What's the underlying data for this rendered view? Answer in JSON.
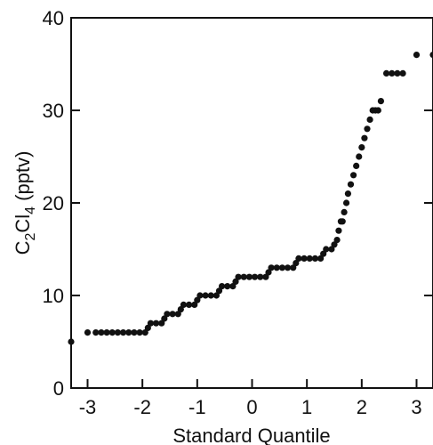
{
  "chart_data": {
    "type": "scatter",
    "xlabel": "Standard Quantile",
    "ylabel_parts": [
      "C",
      "2",
      "Cl",
      "4",
      " (pptv)"
    ],
    "xlim": [
      -3.3,
      3.3
    ],
    "ylim": [
      0,
      40
    ],
    "x_ticks": [
      -3,
      -2,
      -1,
      0,
      1,
      2,
      3
    ],
    "x_tick_labels": [
      "-3",
      "-2",
      "-1",
      "0",
      "1",
      "2",
      "3"
    ],
    "y_ticks": [
      0,
      10,
      20,
      30,
      40
    ],
    "y_tick_labels": [
      "0",
      "10",
      "20",
      "30",
      "40"
    ],
    "grid": false,
    "marker_color": "#111111",
    "series": [
      {
        "points": [
          [
            -3.3,
            5
          ],
          [
            -3.0,
            6
          ],
          [
            -2.85,
            6
          ],
          [
            -2.75,
            6
          ],
          [
            -2.65,
            6
          ],
          [
            -2.55,
            6
          ],
          [
            -2.45,
            6
          ],
          [
            -2.35,
            6
          ],
          [
            -2.25,
            6
          ],
          [
            -2.15,
            6
          ],
          [
            -2.05,
            6
          ],
          [
            -1.95,
            6
          ],
          [
            -1.9,
            6.5
          ],
          [
            -1.85,
            7
          ],
          [
            -1.75,
            7
          ],
          [
            -1.65,
            7
          ],
          [
            -1.6,
            7.5
          ],
          [
            -1.55,
            8
          ],
          [
            -1.45,
            8
          ],
          [
            -1.35,
            8
          ],
          [
            -1.3,
            8.5
          ],
          [
            -1.25,
            9
          ],
          [
            -1.15,
            9
          ],
          [
            -1.05,
            9
          ],
          [
            -1.0,
            9.5
          ],
          [
            -0.95,
            10
          ],
          [
            -0.85,
            10
          ],
          [
            -0.75,
            10
          ],
          [
            -0.65,
            10
          ],
          [
            -0.6,
            10.5
          ],
          [
            -0.55,
            11
          ],
          [
            -0.45,
            11
          ],
          [
            -0.35,
            11
          ],
          [
            -0.3,
            11.5
          ],
          [
            -0.25,
            12
          ],
          [
            -0.15,
            12
          ],
          [
            -0.05,
            12
          ],
          [
            0.05,
            12
          ],
          [
            0.15,
            12
          ],
          [
            0.25,
            12
          ],
          [
            0.3,
            12.5
          ],
          [
            0.35,
            13
          ],
          [
            0.45,
            13
          ],
          [
            0.55,
            13
          ],
          [
            0.65,
            13
          ],
          [
            0.75,
            13
          ],
          [
            0.8,
            13.5
          ],
          [
            0.85,
            14
          ],
          [
            0.95,
            14
          ],
          [
            1.05,
            14
          ],
          [
            1.15,
            14
          ],
          [
            1.25,
            14
          ],
          [
            1.3,
            14.5
          ],
          [
            1.35,
            15
          ],
          [
            1.45,
            15
          ],
          [
            1.5,
            15.5
          ],
          [
            1.55,
            16
          ],
          [
            1.58,
            17
          ],
          [
            1.62,
            18
          ],
          [
            1.65,
            18
          ],
          [
            1.68,
            19
          ],
          [
            1.72,
            20
          ],
          [
            1.75,
            21
          ],
          [
            1.8,
            22
          ],
          [
            1.85,
            23
          ],
          [
            1.9,
            24
          ],
          [
            1.95,
            25
          ],
          [
            2.0,
            26
          ],
          [
            2.05,
            27
          ],
          [
            2.1,
            28
          ],
          [
            2.15,
            29
          ],
          [
            2.2,
            30
          ],
          [
            2.25,
            30
          ],
          [
            2.3,
            30
          ],
          [
            2.35,
            31
          ],
          [
            2.45,
            34
          ],
          [
            2.55,
            34
          ],
          [
            2.65,
            34
          ],
          [
            2.75,
            34
          ],
          [
            3.0,
            36
          ],
          [
            3.3,
            36
          ]
        ]
      }
    ]
  }
}
